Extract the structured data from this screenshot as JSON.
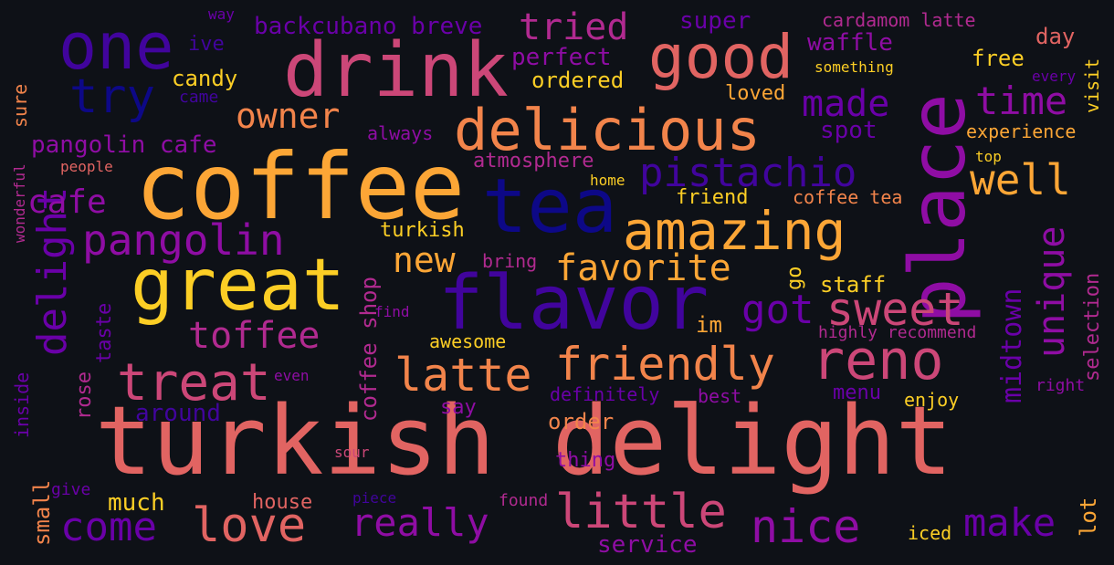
{
  "palette": {
    "background": "#0e1117",
    "colors": [
      "#0d0887",
      "#41049d",
      "#6a00a8",
      "#8f0da4",
      "#b12a90",
      "#cc4778",
      "#e16462",
      "#f2844b",
      "#fca636",
      "#fcce25",
      "#f0f921"
    ]
  },
  "words": [
    {
      "text": "turkish delight",
      "color": "#e16462"
    },
    {
      "text": "coffee",
      "color": "#fca636"
    },
    {
      "text": "place",
      "color": "#8f0da4"
    },
    {
      "text": "drink",
      "color": "#cc4778"
    },
    {
      "text": "great",
      "color": "#fcce25"
    },
    {
      "text": "flavor",
      "color": "#41049d"
    },
    {
      "text": "tea",
      "color": "#0d0887"
    },
    {
      "text": "good",
      "color": "#e16462"
    },
    {
      "text": "delicious",
      "color": "#f2844b"
    },
    {
      "text": "one",
      "color": "#41049d"
    },
    {
      "text": "amazing",
      "color": "#fca636"
    },
    {
      "text": "reno",
      "color": "#cc4778"
    },
    {
      "text": "friendly",
      "color": "#f2844b"
    },
    {
      "text": "treat",
      "color": "#cc4778"
    },
    {
      "text": "love",
      "color": "#e16462"
    },
    {
      "text": "pangolin",
      "color": "#8f0da4"
    },
    {
      "text": "latte",
      "color": "#f2844b"
    },
    {
      "text": "sweet",
      "color": "#cc4778"
    },
    {
      "text": "little",
      "color": "#cc4778"
    },
    {
      "text": "pistachio",
      "color": "#41049d"
    },
    {
      "text": "nice",
      "color": "#8f0da4"
    },
    {
      "text": "really",
      "color": "#8f0da4"
    },
    {
      "text": "come",
      "color": "#6a00a8"
    },
    {
      "text": "try",
      "color": "#0d0887"
    },
    {
      "text": "well",
      "color": "#fca636"
    },
    {
      "text": "time",
      "color": "#8f0da4"
    },
    {
      "text": "made",
      "color": "#6a00a8"
    },
    {
      "text": "make",
      "color": "#6a00a8"
    },
    {
      "text": "got",
      "color": "#6a00a8"
    },
    {
      "text": "favorite",
      "color": "#fca636"
    },
    {
      "text": "owner",
      "color": "#f2844b"
    },
    {
      "text": "toffee",
      "color": "#b12a90"
    },
    {
      "text": "delight",
      "color": "#6a00a8"
    },
    {
      "text": "unique",
      "color": "#8f0da4"
    },
    {
      "text": "new",
      "color": "#fca636"
    },
    {
      "text": "tried",
      "color": "#b12a90"
    },
    {
      "text": "cafe",
      "color": "#8f0da4"
    },
    {
      "text": "midtown",
      "color": "#6a00a8"
    },
    {
      "text": "pangolin cafe",
      "color": "#8f0da4"
    },
    {
      "text": "backcubano breve",
      "color": "#6a00a8"
    },
    {
      "text": "super",
      "color": "#6a00a8"
    },
    {
      "text": "waffle",
      "color": "#8f0da4"
    },
    {
      "text": "cardamom latte",
      "color": "#b12a90"
    },
    {
      "text": "day",
      "color": "#e16462"
    },
    {
      "text": "perfect",
      "color": "#8f0da4"
    },
    {
      "text": "free",
      "color": "#fcce25"
    },
    {
      "text": "ordered",
      "color": "#fcce25"
    },
    {
      "text": "candy",
      "color": "#fcce25"
    },
    {
      "text": "ive",
      "color": "#41049d"
    },
    {
      "text": "came",
      "color": "#41049d"
    },
    {
      "text": "loved",
      "color": "#fca636"
    },
    {
      "text": "something",
      "color": "#fcce25"
    },
    {
      "text": "every",
      "color": "#6a00a8"
    },
    {
      "text": "visit",
      "color": "#fcce25"
    },
    {
      "text": "sure",
      "color": "#f2844b"
    },
    {
      "text": "spot",
      "color": "#6a00a8"
    },
    {
      "text": "always",
      "color": "#8f0da4"
    },
    {
      "text": "experience",
      "color": "#fca636"
    },
    {
      "text": "top",
      "color": "#fcce25"
    },
    {
      "text": "atmosphere",
      "color": "#b12a90"
    },
    {
      "text": "home",
      "color": "#fcce25"
    },
    {
      "text": "people",
      "color": "#e16462"
    },
    {
      "text": "wonderful",
      "color": "#b12a90"
    },
    {
      "text": "friend",
      "color": "#fcce25"
    },
    {
      "text": "coffee tea",
      "color": "#f2844b"
    },
    {
      "text": "turkish",
      "color": "#fcce25"
    },
    {
      "text": "coffee shop",
      "color": "#b12a90"
    },
    {
      "text": "bring",
      "color": "#b12a90"
    },
    {
      "text": "go",
      "color": "#fcce25"
    },
    {
      "text": "staff",
      "color": "#fcce25"
    },
    {
      "text": "taste",
      "color": "#6a00a8"
    },
    {
      "text": "find",
      "color": "#8f0da4"
    },
    {
      "text": "im",
      "color": "#fca636"
    },
    {
      "text": "highly recommend",
      "color": "#b12a90"
    },
    {
      "text": "selection",
      "color": "#b12a90"
    },
    {
      "text": "awesome",
      "color": "#fcce25"
    },
    {
      "text": "rose",
      "color": "#b12a90"
    },
    {
      "text": "inside",
      "color": "#6a00a8"
    },
    {
      "text": "even",
      "color": "#8f0da4"
    },
    {
      "text": "around",
      "color": "#41049d"
    },
    {
      "text": "definitely",
      "color": "#6a00a8"
    },
    {
      "text": "best",
      "color": "#8f0da4"
    },
    {
      "text": "menu",
      "color": "#6a00a8"
    },
    {
      "text": "enjoy",
      "color": "#fcce25"
    },
    {
      "text": "right",
      "color": "#8f0da4"
    },
    {
      "text": "say",
      "color": "#8f0da4"
    },
    {
      "text": "order",
      "color": "#f2844b"
    },
    {
      "text": "thing",
      "color": "#8f0da4"
    },
    {
      "text": "sour",
      "color": "#cc4778"
    },
    {
      "text": "small",
      "color": "#f2844b"
    },
    {
      "text": "give",
      "color": "#6a00a8"
    },
    {
      "text": "much",
      "color": "#fcce25"
    },
    {
      "text": "house",
      "color": "#e16462"
    },
    {
      "text": "piece",
      "color": "#41049d"
    },
    {
      "text": "found",
      "color": "#b12a90"
    },
    {
      "text": "service",
      "color": "#8f0da4"
    },
    {
      "text": "lot",
      "color": "#fca636"
    },
    {
      "text": "iced",
      "color": "#fcce25"
    },
    {
      "text": "way",
      "color": "#6a00a8"
    }
  ]
}
